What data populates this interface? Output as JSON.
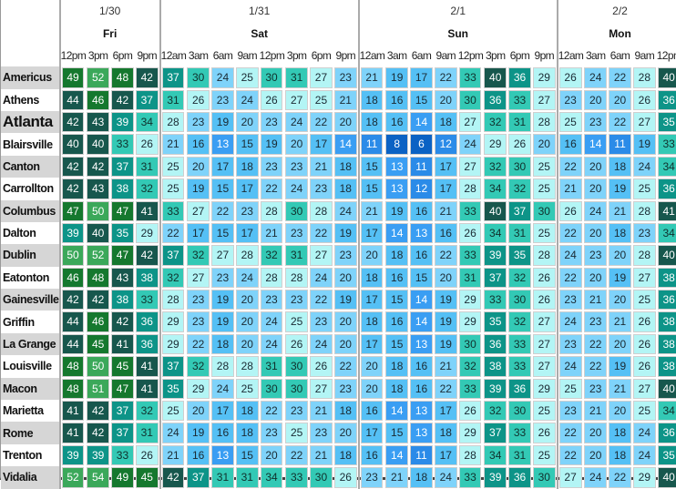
{
  "chart_data": {
    "type": "heatmap",
    "days": [
      {
        "date": "1/30",
        "day": "Fri",
        "times": [
          "12pm",
          "3pm",
          "6pm",
          "9pm"
        ]
      },
      {
        "date": "1/31",
        "day": "Sat",
        "times": [
          "12am",
          "3am",
          "6am",
          "9am",
          "12pm",
          "3pm",
          "6pm",
          "9pm"
        ]
      },
      {
        "date": "2/1",
        "day": "Sun",
        "times": [
          "12am",
          "3am",
          "6am",
          "9am",
          "12pm",
          "3pm",
          "6pm",
          "9pm"
        ]
      },
      {
        "date": "2/2",
        "day": "Mon",
        "times": [
          "12am",
          "3am",
          "6am",
          "9am",
          "12pm"
        ]
      }
    ],
    "rows": [
      {
        "city": "Americus",
        "values": [
          49,
          52,
          48,
          42,
          37,
          30,
          24,
          25,
          30,
          31,
          27,
          23,
          21,
          19,
          17,
          22,
          33,
          40,
          36,
          29,
          26,
          24,
          22,
          28,
          40
        ]
      },
      {
        "city": "Athens",
        "values": [
          44,
          46,
          42,
          37,
          31,
          26,
          23,
          24,
          26,
          27,
          25,
          21,
          18,
          16,
          15,
          20,
          30,
          36,
          33,
          27,
          23,
          20,
          20,
          26,
          36
        ]
      },
      {
        "city": "Atlanta",
        "values": [
          42,
          43,
          39,
          34,
          28,
          23,
          19,
          20,
          23,
          24,
          22,
          20,
          18,
          16,
          14,
          18,
          27,
          32,
          31,
          28,
          25,
          23,
          22,
          27,
          35
        ]
      },
      {
        "city": "Blairsville",
        "values": [
          40,
          40,
          33,
          26,
          21,
          16,
          13,
          15,
          19,
          20,
          17,
          14,
          11,
          8,
          6,
          12,
          24,
          29,
          26,
          20,
          16,
          14,
          11,
          19,
          33
        ]
      },
      {
        "city": "Canton",
        "values": [
          42,
          42,
          37,
          31,
          25,
          20,
          17,
          18,
          23,
          23,
          21,
          18,
          15,
          13,
          11,
          17,
          27,
          32,
          30,
          25,
          22,
          20,
          18,
          24,
          34
        ]
      },
      {
        "city": "Carrollton",
        "values": [
          42,
          43,
          38,
          32,
          25,
          19,
          15,
          17,
          22,
          24,
          23,
          18,
          15,
          13,
          12,
          17,
          28,
          34,
          32,
          25,
          21,
          20,
          19,
          25,
          36
        ]
      },
      {
        "city": "Columbus",
        "values": [
          47,
          50,
          47,
          41,
          33,
          27,
          22,
          23,
          28,
          30,
          28,
          24,
          21,
          19,
          16,
          21,
          33,
          40,
          37,
          30,
          26,
          24,
          21,
          28,
          41
        ]
      },
      {
        "city": "Dalton",
        "values": [
          39,
          40,
          35,
          29,
          22,
          17,
          15,
          17,
          21,
          23,
          22,
          19,
          17,
          14,
          13,
          16,
          26,
          34,
          31,
          25,
          22,
          20,
          18,
          23,
          34
        ]
      },
      {
        "city": "Dublin",
        "values": [
          50,
          52,
          47,
          42,
          37,
          32,
          27,
          28,
          32,
          31,
          27,
          23,
          20,
          18,
          16,
          22,
          33,
          39,
          35,
          28,
          24,
          23,
          20,
          28,
          40
        ]
      },
      {
        "city": "Eatonton",
        "values": [
          46,
          48,
          43,
          38,
          32,
          27,
          23,
          24,
          28,
          28,
          24,
          20,
          18,
          16,
          15,
          20,
          31,
          37,
          32,
          26,
          22,
          20,
          19,
          27,
          38
        ]
      },
      {
        "city": "Gainesville",
        "values": [
          42,
          42,
          38,
          33,
          28,
          23,
          19,
          20,
          23,
          23,
          22,
          19,
          17,
          15,
          14,
          19,
          29,
          33,
          30,
          26,
          23,
          21,
          20,
          25,
          36
        ]
      },
      {
        "city": "Griffin",
        "values": [
          44,
          46,
          42,
          36,
          29,
          23,
          19,
          20,
          24,
          25,
          23,
          20,
          18,
          16,
          14,
          19,
          29,
          35,
          32,
          27,
          24,
          23,
          21,
          26,
          38
        ]
      },
      {
        "city": "La Grange",
        "values": [
          44,
          45,
          41,
          36,
          29,
          22,
          18,
          20,
          24,
          26,
          24,
          20,
          17,
          15,
          13,
          19,
          30,
          36,
          33,
          27,
          23,
          22,
          20,
          26,
          38
        ]
      },
      {
        "city": "Louisville",
        "values": [
          48,
          50,
          45,
          41,
          37,
          32,
          28,
          28,
          31,
          30,
          26,
          22,
          20,
          18,
          16,
          21,
          32,
          38,
          33,
          27,
          24,
          22,
          19,
          26,
          38
        ]
      },
      {
        "city": "Macon",
        "values": [
          48,
          51,
          47,
          41,
          35,
          29,
          24,
          25,
          30,
          30,
          27,
          23,
          20,
          18,
          16,
          22,
          33,
          39,
          36,
          29,
          25,
          23,
          21,
          27,
          40
        ]
      },
      {
        "city": "Marietta",
        "values": [
          41,
          42,
          37,
          32,
          25,
          20,
          17,
          18,
          22,
          23,
          21,
          18,
          16,
          14,
          13,
          17,
          26,
          32,
          30,
          25,
          23,
          21,
          20,
          25,
          34
        ]
      },
      {
        "city": "Rome",
        "values": [
          41,
          42,
          37,
          31,
          24,
          19,
          16,
          18,
          23,
          25,
          23,
          20,
          17,
          15,
          13,
          18,
          29,
          37,
          33,
          26,
          22,
          20,
          18,
          24,
          36
        ]
      },
      {
        "city": "Trenton",
        "values": [
          39,
          39,
          33,
          26,
          21,
          16,
          13,
          15,
          20,
          22,
          21,
          18,
          16,
          14,
          11,
          17,
          28,
          34,
          31,
          25,
          22,
          20,
          18,
          24,
          35
        ]
      },
      {
        "city": "Vidalia",
        "values": [
          52,
          54,
          49,
          45,
          42,
          37,
          31,
          31,
          34,
          33,
          30,
          26,
          23,
          21,
          18,
          24,
          33,
          39,
          36,
          30,
          27,
          24,
          22,
          29,
          40
        ]
      }
    ],
    "highlighted_city": "Atlanta",
    "color_scale": [
      {
        "max": 9,
        "color": "#0b62c4",
        "text": "#ffffff"
      },
      {
        "max": 12,
        "color": "#2b8be8",
        "text": "#ffffff"
      },
      {
        "max": 14,
        "color": "#3a9ef3",
        "text": "#ffffff"
      },
      {
        "max": 19,
        "color": "#55c0f5",
        "text": "#1a2a33"
      },
      {
        "max": 24,
        "color": "#7fd3fa",
        "text": "#1a2a33"
      },
      {
        "max": 29,
        "color": "#b3f5f5",
        "text": "#1a2a33"
      },
      {
        "max": 34,
        "color": "#33c9b5",
        "text": "#10302c"
      },
      {
        "max": 39,
        "color": "#0d9488",
        "text": "#ffffff"
      },
      {
        "max": 44,
        "color": "#17574d",
        "text": "#ffffff"
      },
      {
        "max": 49,
        "color": "#15782e",
        "text": "#ffffff"
      },
      {
        "max": 99,
        "color": "#3ba85a",
        "text": "#ffffff"
      }
    ]
  }
}
